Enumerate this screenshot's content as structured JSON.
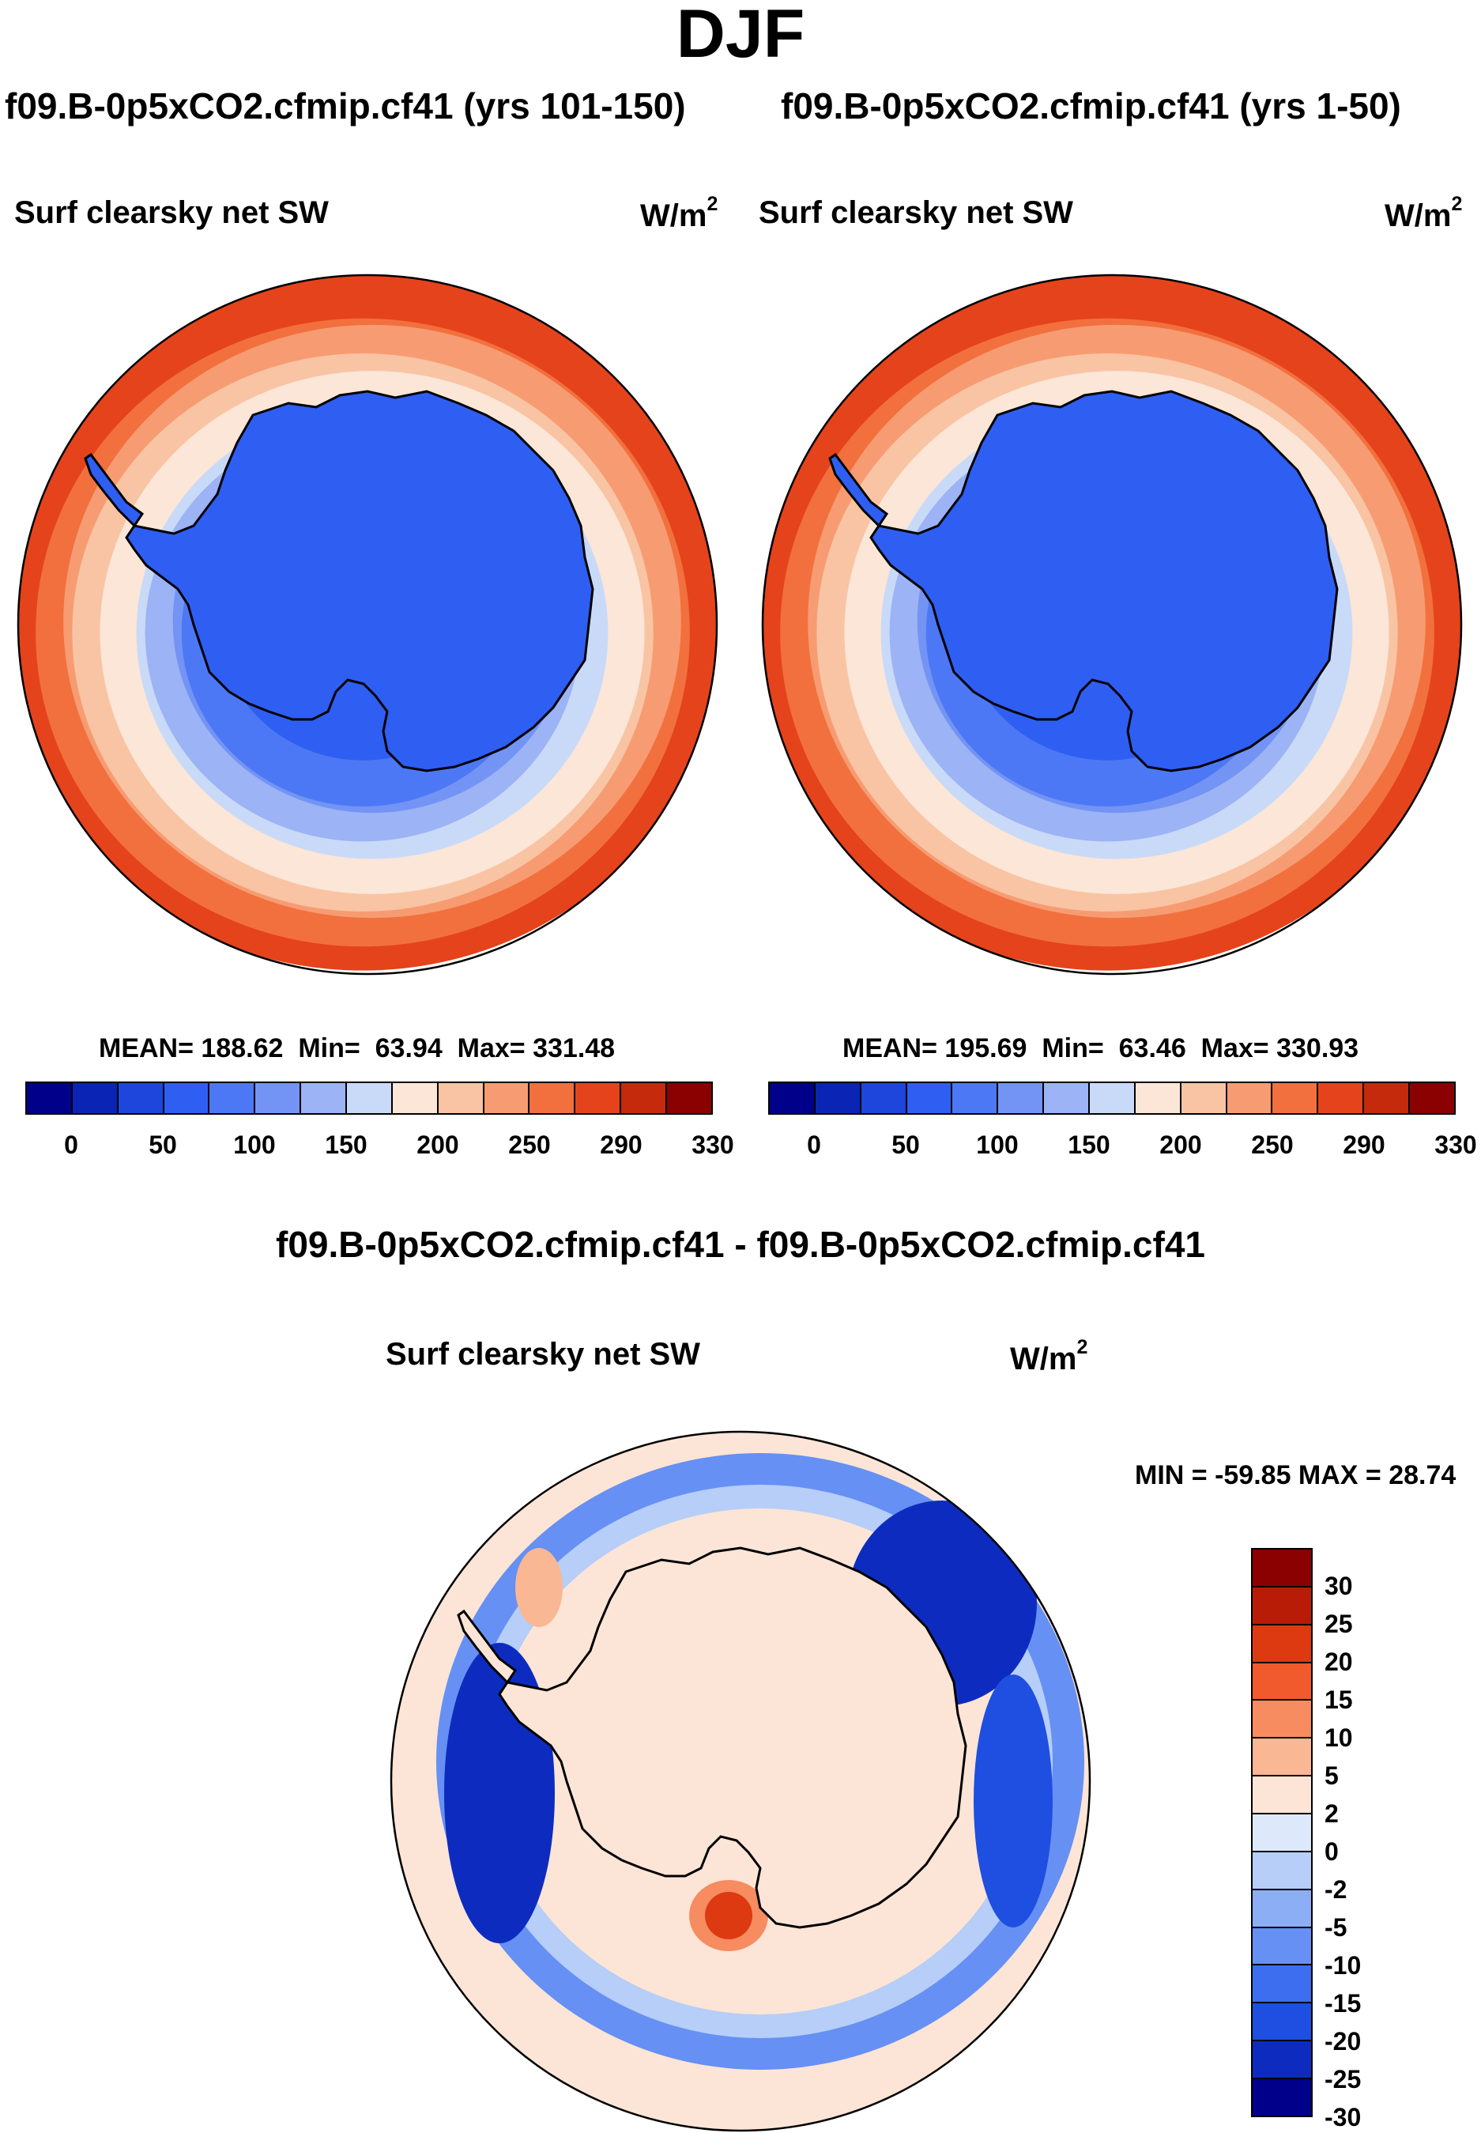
{
  "main_title": "DJF",
  "panels": [
    {
      "case_title": "f09.B-0p5xCO2.cfmip.cf41 (yrs 101-150)",
      "variable": "Surf clearsky net SW",
      "units": "W/m",
      "units_exp": "2",
      "stats": {
        "mean_label": "MEAN=",
        "mean": "188.62",
        "min_label": "Min=",
        "min": "63.94",
        "max_label": "Max=",
        "max": "331.48"
      },
      "field_ring_values": [
        320,
        300,
        280,
        260,
        240,
        220,
        200,
        180,
        160,
        140,
        120,
        100,
        90
      ]
    },
    {
      "case_title": "f09.B-0p5xCO2.cfmip.cf41 (yrs 1-50)",
      "variable": "Surf clearsky net SW",
      "units": "W/m",
      "units_exp": "2",
      "stats": {
        "mean_label": "MEAN=",
        "mean": "195.69",
        "min_label": "Min=",
        "min": "63.46",
        "max_label": "Max=",
        "max": "330.93"
      },
      "field_ring_values": [
        320,
        300,
        280,
        260,
        240,
        220,
        200,
        180,
        160,
        140,
        120,
        100,
        90
      ]
    }
  ],
  "colorbar_top": {
    "colors": [
      "#00008b",
      "#0a25b5",
      "#1e46dc",
      "#2f5ef2",
      "#4d78f5",
      "#7394f4",
      "#9cb3f5",
      "#c9daf8",
      "#fbe6d7",
      "#f9c4a4",
      "#f79c72",
      "#f2703e",
      "#e5431b",
      "#c42a0b",
      "#8b0000"
    ],
    "tick_labels": [
      "0",
      "50",
      "100",
      "150",
      "200",
      "250",
      "290",
      "330"
    ]
  },
  "diff": {
    "title": "f09.B-0p5xCO2.cfmip.cf41 - f09.B-0p5xCO2.cfmip.cf41",
    "variable": "Surf clearsky net SW",
    "units": "W/m",
    "units_exp": "2",
    "stats": "MIN = -59.85 MAX =  28.74"
  },
  "colorbar_diff": {
    "colors": [
      "#8b0000",
      "#b81c06",
      "#dd3a12",
      "#f05a2c",
      "#f68c5f",
      "#f9b794",
      "#fce5d6",
      "#dde9fb",
      "#b6cef8",
      "#8caef5",
      "#6690f3",
      "#3e6ef0",
      "#1f4fe0",
      "#0d2cbf",
      "#00008b"
    ],
    "tick_labels": [
      "30",
      "25",
      "20",
      "15",
      "10",
      "5",
      "2",
      "0",
      "-2",
      "-5",
      "-10",
      "-15",
      "-20",
      "-25",
      "-30"
    ]
  },
  "map_features": {
    "continent": "Antarctica",
    "coastline_color": "#000000"
  }
}
